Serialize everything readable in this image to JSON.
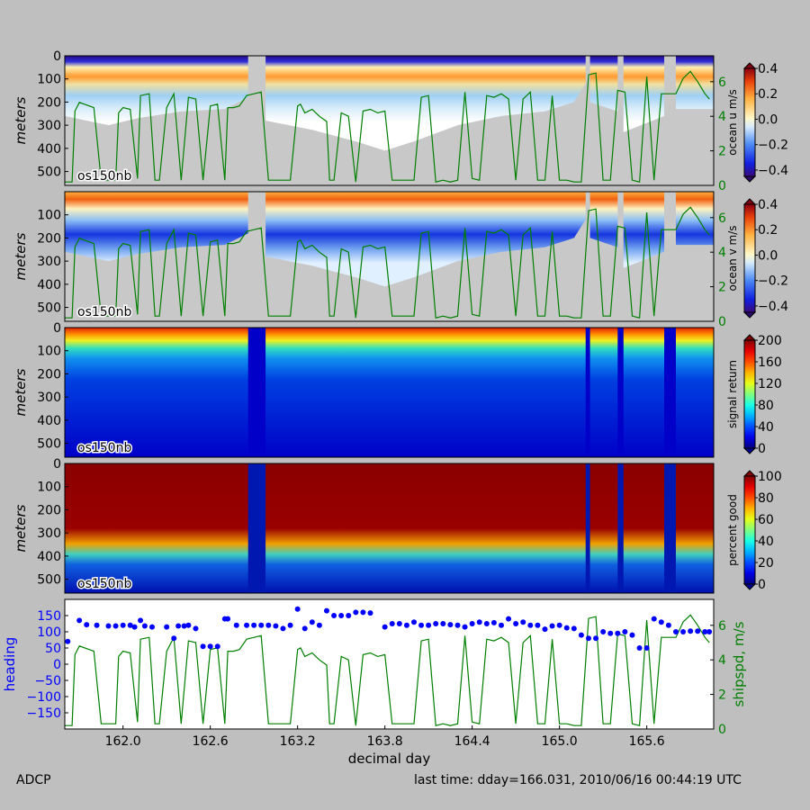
{
  "footer": {
    "left": "ADCP",
    "right": "last time: dday=166.031,  2010/06/16 00:44:19 UTC"
  },
  "colors": {
    "background": "#bfbfbf",
    "heading": "#0000ff",
    "shipspd": "#007f00",
    "nodata": "#c8c8c8"
  },
  "chart_data": [
    {
      "type": "heatmap",
      "id": "u",
      "ylabel": "meters",
      "ylim": [
        560,
        0
      ],
      "yticks": [
        0,
        100,
        200,
        300,
        400,
        500
      ],
      "ylabels": [
        "0",
        "100",
        "200",
        "300",
        "400",
        "500"
      ],
      "instrument_label": "os150nb",
      "colorbar": {
        "label": "ocean u m/s",
        "colormap": "bwr-jet",
        "range": [
          -0.45,
          0.4
        ],
        "ticks": [
          0.4,
          0.2,
          0.0,
          -0.2,
          -0.4
        ],
        "ticklabels": [
          "0.4",
          "0.2",
          "0.0",
          "−0.2",
          "−0.4"
        ]
      },
      "right_axis": {
        "range": [
          0,
          7.5
        ],
        "ticks": [
          0,
          2,
          4,
          6
        ],
        "ticklabels": [
          "0",
          "2",
          "4",
          "6"
        ]
      }
    },
    {
      "type": "heatmap",
      "id": "v",
      "ylabel": "meters",
      "ylim": [
        560,
        0
      ],
      "yticks": [
        100,
        200,
        300,
        400,
        500
      ],
      "ylabels": [
        "100",
        "200",
        "300",
        "400",
        "500"
      ],
      "instrument_label": "os150nb",
      "colorbar": {
        "label": "ocean v m/s",
        "colormap": "bwr-jet",
        "range": [
          -0.45,
          0.4
        ],
        "ticks": [
          0.4,
          0.2,
          0.0,
          -0.2,
          -0.4
        ],
        "ticklabels": [
          "0.4",
          "0.2",
          "0.0",
          "−0.2",
          "−0.4"
        ]
      },
      "right_axis": {
        "range": [
          0,
          7.5
        ],
        "ticks": [
          0,
          2,
          4,
          6
        ],
        "ticklabels": [
          "0",
          "2",
          "4",
          "6"
        ]
      }
    },
    {
      "type": "heatmap",
      "id": "amp",
      "ylabel": "meters",
      "ylim": [
        560,
        0
      ],
      "yticks": [
        0,
        100,
        200,
        300,
        400,
        500
      ],
      "ylabels": [
        "0",
        "100",
        "200",
        "300",
        "400",
        "500"
      ],
      "instrument_label": "os150nb",
      "colorbar": {
        "label": "signal return",
        "colormap": "jet",
        "range": [
          0,
          200
        ],
        "ticks": [
          200,
          160,
          120,
          80,
          40,
          0
        ],
        "ticklabels": [
          "200",
          "160",
          "120",
          "80",
          "40",
          "0"
        ]
      }
    },
    {
      "type": "heatmap",
      "id": "pg",
      "ylabel": "meters",
      "ylim": [
        560,
        0
      ],
      "yticks": [
        0,
        100,
        200,
        300,
        400,
        500
      ],
      "ylabels": [
        "0",
        "100",
        "200",
        "300",
        "400",
        "500"
      ],
      "instrument_label": "os150nb",
      "colorbar": {
        "label": "percent good",
        "colormap": "jet",
        "range": [
          0,
          100
        ],
        "ticks": [
          100,
          80,
          60,
          40,
          20,
          0
        ],
        "ticklabels": [
          "100",
          "80",
          "60",
          "40",
          "20",
          "0"
        ]
      }
    },
    {
      "type": "scatter",
      "id": "nav",
      "xlabel": "decimal day",
      "xlim": [
        161.6,
        166.06
      ],
      "xticks": [
        162.0,
        162.6,
        163.2,
        163.8,
        164.4,
        165.0,
        165.6
      ],
      "xticklabels": [
        "162.0",
        "162.6",
        "163.2",
        "163.8",
        "164.4",
        "165.0",
        "165.6"
      ],
      "ylabel": "heading",
      "ylim": [
        -200,
        200
      ],
      "yticks": [
        150,
        100,
        50,
        0,
        -50,
        -100,
        -150
      ],
      "yticklabels": [
        "150",
        "100",
        "50",
        "0",
        "−50",
        "−100",
        "−150"
      ],
      "ylabel_right": "shipspd, m/s",
      "ylim_right": [
        0,
        7.5
      ],
      "yticks_right": [
        0,
        2,
        4,
        6
      ],
      "yticklabels_right": [
        "0",
        "2",
        "4",
        "6"
      ],
      "series": [
        {
          "name": "heading",
          "x": [
            161.62,
            161.7,
            161.75,
            161.82,
            161.9,
            161.95,
            162.0,
            162.05,
            162.08,
            162.12,
            162.15,
            162.2,
            162.3,
            162.35,
            162.38,
            162.42,
            162.45,
            162.5,
            162.55,
            162.6,
            162.65,
            162.7,
            162.72,
            162.78,
            162.85,
            162.9,
            162.95,
            163.0,
            163.05,
            163.1,
            163.15,
            163.2,
            163.25,
            163.3,
            163.35,
            163.4,
            163.45,
            163.5,
            163.55,
            163.6,
            163.65,
            163.7,
            163.8,
            163.85,
            163.9,
            163.95,
            164.0,
            164.05,
            164.1,
            164.15,
            164.2,
            164.25,
            164.3,
            164.35,
            164.4,
            164.45,
            164.5,
            164.55,
            164.6,
            164.65,
            164.7,
            164.75,
            164.8,
            164.85,
            164.9,
            164.95,
            165.0,
            165.05,
            165.1,
            165.15,
            165.2,
            165.25,
            165.3,
            165.35,
            165.4,
            165.45,
            165.5,
            165.55,
            165.6,
            165.65,
            165.7,
            165.75,
            165.8,
            165.85,
            165.9,
            165.95,
            166.0,
            166.03
          ],
          "values": [
            70,
            135,
            122,
            120,
            118,
            118,
            120,
            120,
            115,
            135,
            118,
            115,
            115,
            80,
            118,
            118,
            120,
            110,
            55,
            55,
            55,
            140,
            140,
            120,
            120,
            120,
            120,
            120,
            118,
            110,
            120,
            170,
            110,
            130,
            120,
            165,
            150,
            150,
            150,
            160,
            160,
            158,
            115,
            125,
            125,
            120,
            130,
            120,
            120,
            125,
            125,
            122,
            120,
            115,
            125,
            130,
            125,
            128,
            120,
            140,
            125,
            130,
            120,
            120,
            108,
            118,
            120,
            112,
            110,
            90,
            80,
            80,
            100,
            95,
            95,
            100,
            90,
            50,
            50,
            140,
            130,
            120,
            100,
            100,
            102,
            102,
            100,
            100
          ]
        },
        {
          "name": "shipspd",
          "x": [
            161.6,
            161.65,
            161.67,
            161.7,
            161.8,
            161.85,
            161.9,
            161.95,
            161.97,
            162.0,
            162.05,
            162.1,
            162.12,
            162.18,
            162.22,
            162.25,
            162.3,
            162.35,
            162.4,
            162.45,
            162.5,
            162.55,
            162.6,
            162.65,
            162.7,
            162.72,
            162.76,
            162.8,
            162.85,
            162.9,
            162.95,
            163.0,
            163.05,
            163.1,
            163.15,
            163.2,
            163.22,
            163.25,
            163.3,
            163.35,
            163.4,
            163.42,
            163.45,
            163.5,
            163.55,
            163.6,
            163.65,
            163.7,
            163.75,
            163.8,
            163.85,
            163.9,
            163.95,
            164.0,
            164.05,
            164.1,
            164.15,
            164.2,
            164.25,
            164.3,
            164.35,
            164.4,
            164.45,
            164.5,
            164.55,
            164.6,
            164.65,
            164.7,
            164.75,
            164.8,
            164.85,
            164.9,
            164.95,
            165.0,
            165.05,
            165.1,
            165.15,
            165.2,
            165.25,
            165.3,
            165.35,
            165.4,
            165.45,
            165.5,
            165.55,
            165.6,
            165.65,
            165.7,
            165.75,
            165.8,
            165.85,
            165.9,
            165.95,
            166.0,
            166.03
          ],
          "values": [
            0.2,
            0.2,
            4.3,
            4.8,
            4.5,
            0.3,
            0.3,
            0.3,
            4.2,
            4.5,
            4.4,
            0.4,
            5.2,
            5.3,
            0.3,
            0.3,
            4.5,
            5.3,
            0.3,
            5.1,
            5.0,
            0.3,
            4.6,
            4.7,
            0.3,
            4.5,
            4.5,
            4.6,
            5.2,
            5.3,
            5.4,
            0.3,
            0.3,
            0.3,
            0.3,
            4.6,
            4.7,
            4.2,
            4.4,
            4.0,
            3.7,
            0.3,
            0.3,
            4.2,
            4.0,
            0.2,
            4.3,
            4.4,
            4.2,
            4.3,
            0.3,
            0.3,
            0.3,
            0.3,
            5.1,
            5.2,
            0.2,
            0.3,
            0.2,
            0.3,
            5.4,
            0.4,
            0.3,
            5.2,
            5.1,
            5.3,
            5.0,
            0.3,
            5.0,
            5.4,
            0.3,
            0.3,
            5.2,
            0.3,
            0.3,
            0.2,
            0.2,
            6.4,
            6.5,
            0.3,
            0.3,
            5.5,
            5.4,
            0.3,
            0.2,
            6.3,
            0.3,
            5.3,
            5.3,
            5.3,
            6.2,
            6.6,
            6.0,
            5.3,
            5.0
          ]
        }
      ]
    }
  ]
}
